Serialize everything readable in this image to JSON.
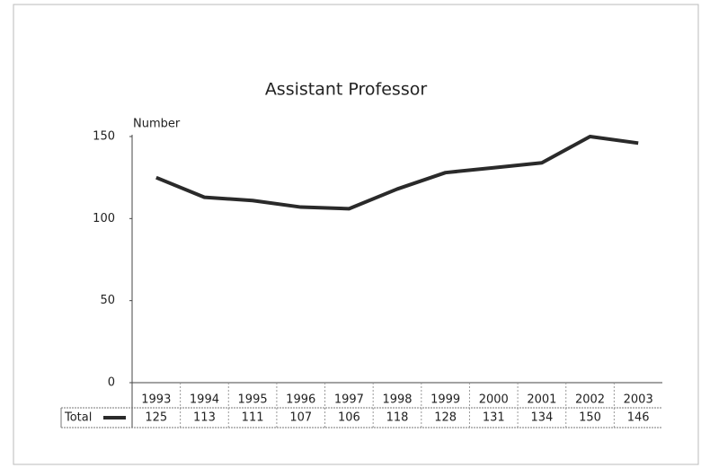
{
  "chart_data": {
    "type": "line",
    "title": "Assistant Professor",
    "y_axis_label": "Number",
    "categories": [
      "1993",
      "1994",
      "1995",
      "1996",
      "1997",
      "1998",
      "1999",
      "2000",
      "2001",
      "2002",
      "2003"
    ],
    "series": [
      {
        "name": "Total",
        "color": "#2a2a2a",
        "values": [
          125,
          113,
          111,
          107,
          106,
          118,
          128,
          131,
          134,
          150,
          146
        ]
      }
    ],
    "ylim": [
      0,
      150
    ],
    "yticks": [
      0,
      50,
      100,
      150
    ],
    "grid": false
  }
}
